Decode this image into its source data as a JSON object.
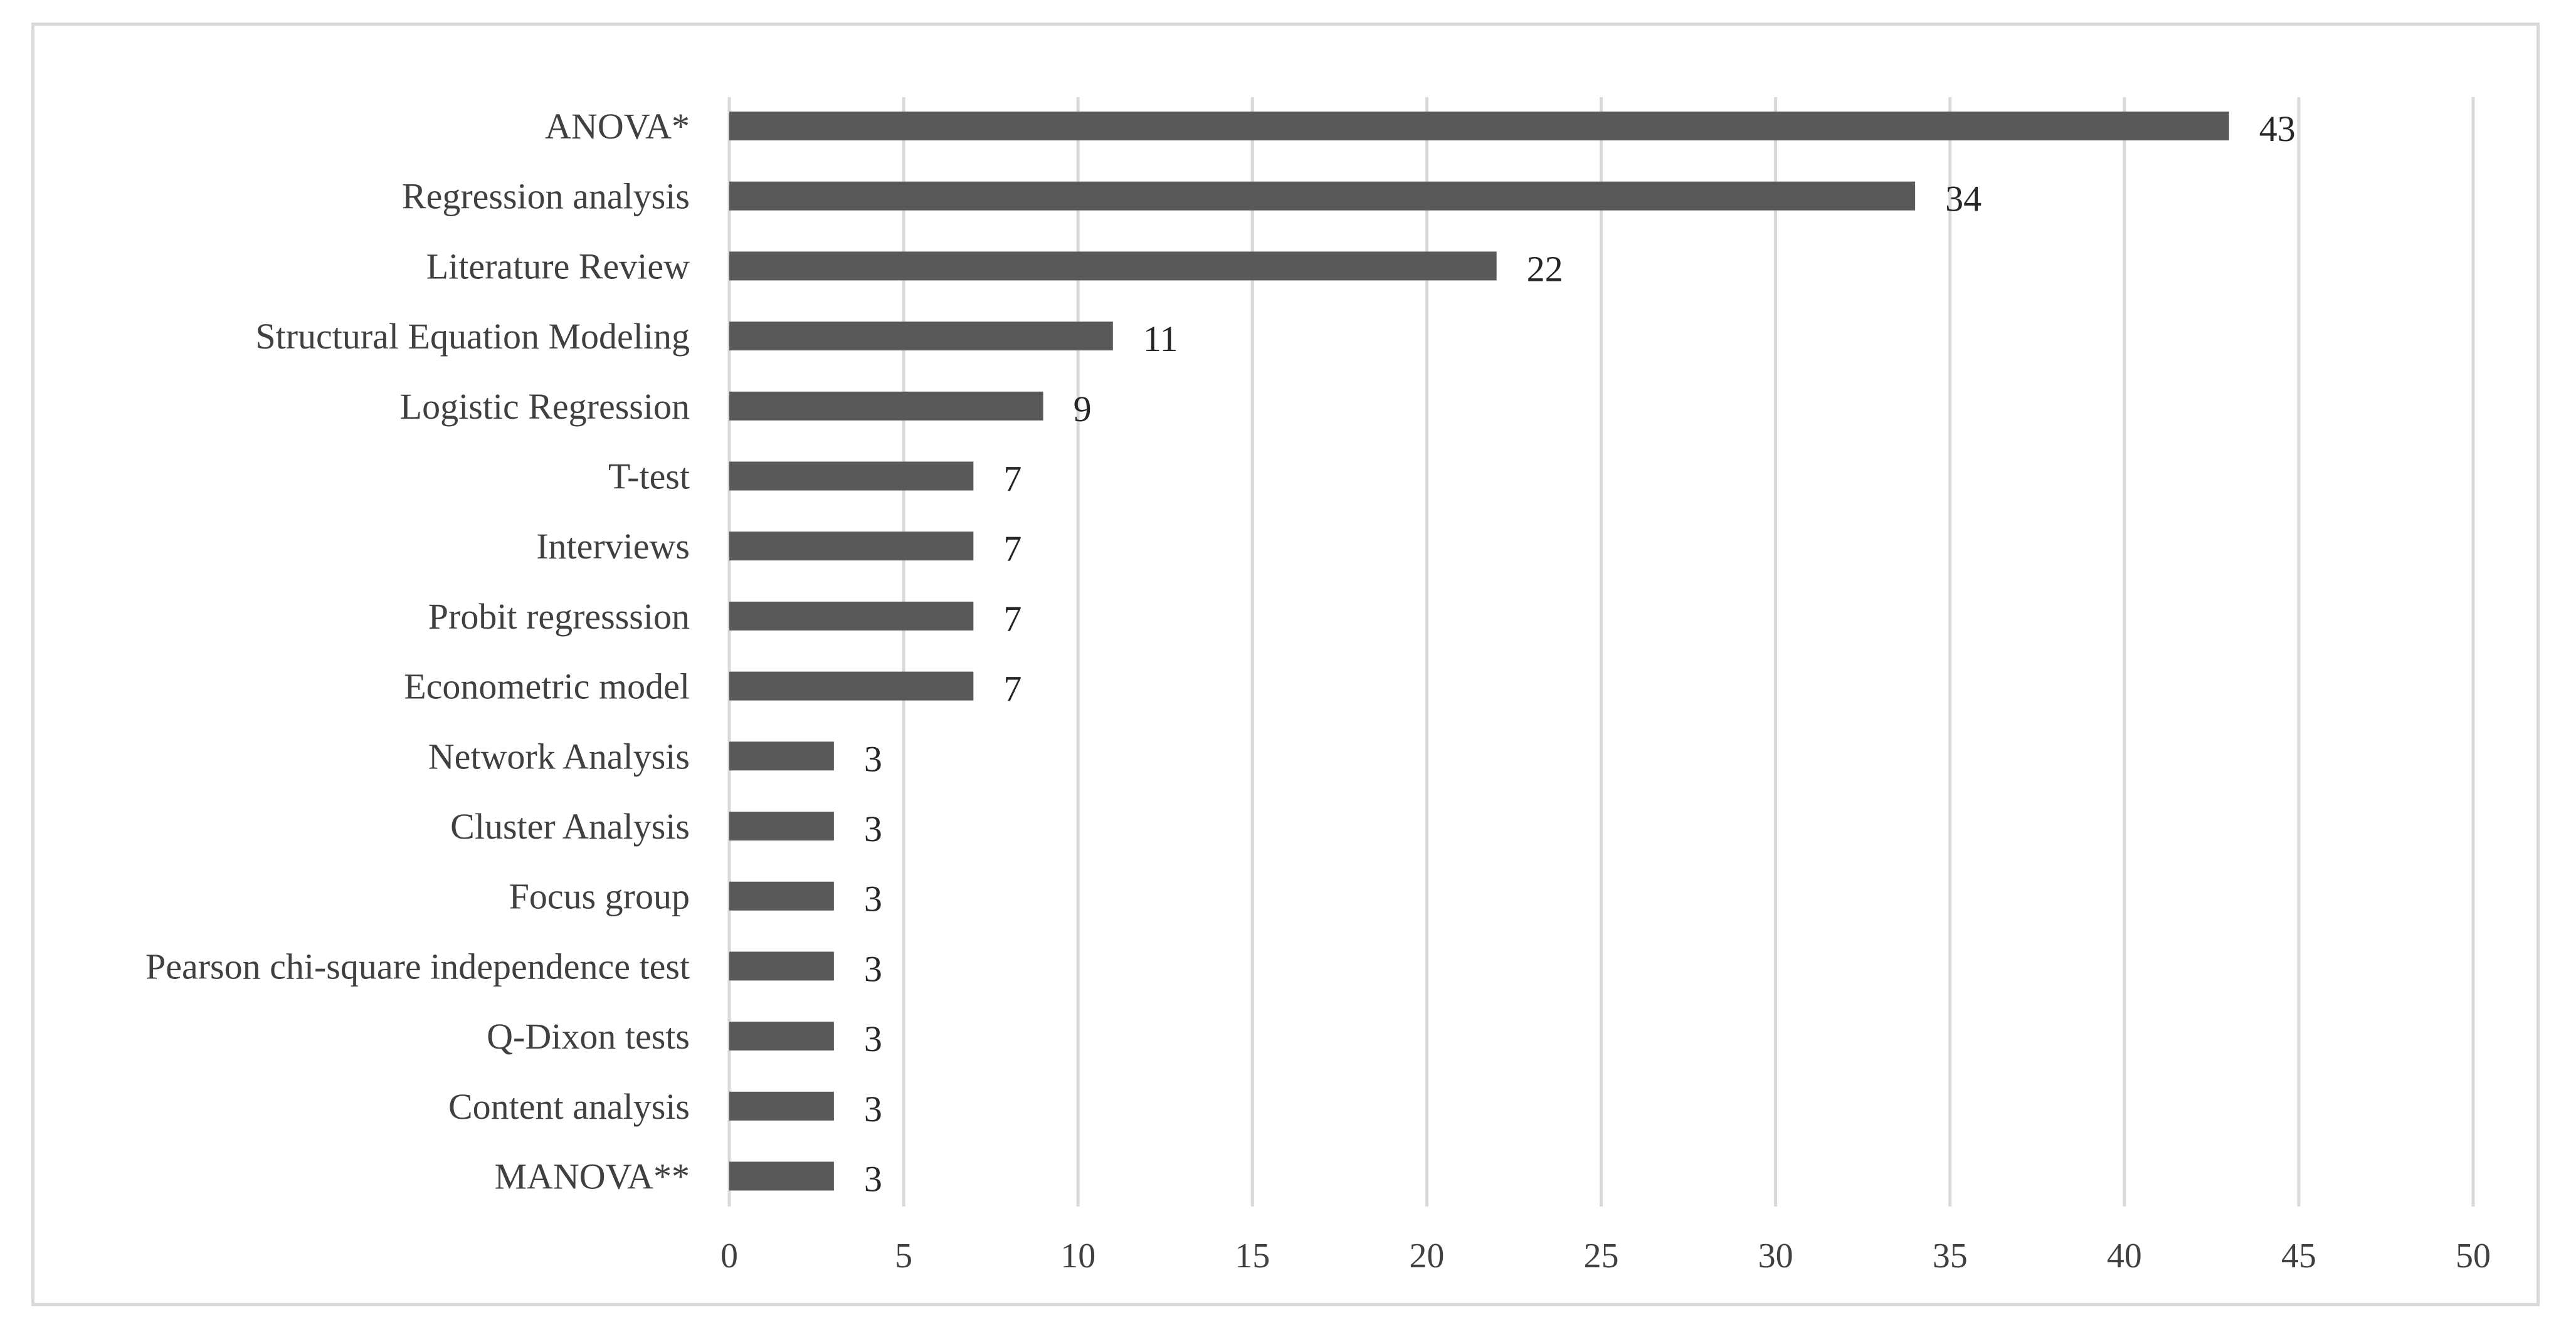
{
  "chart_data": {
    "type": "bar",
    "orientation": "horizontal",
    "categories": [
      "ANOVA*",
      "Regression analysis",
      "Literature Review",
      "Structural Equation Modeling",
      "Logistic Regression",
      "T-test",
      "Interviews",
      "Probit regresssion",
      "Econometric model",
      "Network Analysis",
      "Cluster Analysis",
      "Focus group",
      "Pearson chi-square independence test",
      "Q-Dixon tests",
      "Content analysis",
      "MANOVA**"
    ],
    "values": [
      43,
      34,
      22,
      11,
      9,
      7,
      7,
      7,
      7,
      3,
      3,
      3,
      3,
      3,
      3,
      3
    ],
    "xlim": [
      0,
      50
    ],
    "xticks": [
      0,
      5,
      10,
      15,
      20,
      25,
      30,
      35,
      40,
      45,
      50
    ],
    "grid": true,
    "data_labels": true,
    "legend": "none",
    "bar_color": "#595959",
    "grid_color": "#d9d9d9"
  }
}
